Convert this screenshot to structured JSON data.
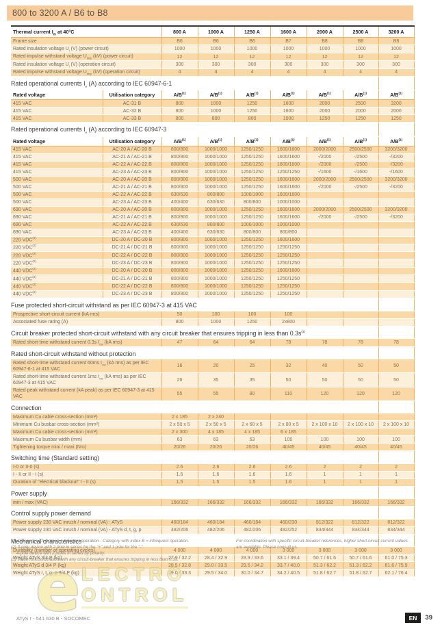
{
  "page": {
    "title": "800 to 3200 A / B6 to B8",
    "footer_left": "ATyS r - 541 630 B - SOCOMEC",
    "lang_badge": "EN",
    "page_number": "39"
  },
  "colors": {
    "band": "#f8cc9a",
    "row_dark": "#fbd9a6",
    "row_light": "#fdf0da",
    "separator": "#f0ae62",
    "badge": "#1d1d1b"
  },
  "watermark": {
    "big_letter": "e",
    "line1": "LECTRO",
    "line2": "ONTROL"
  },
  "sections": [
    {
      "main_header": {
        "label": "Thermal current I<sub>th</sub> at 40°C",
        "cols": [
          "800 A",
          "1000 A",
          "1250 A",
          "1600 A",
          "2000 A",
          "2500 A",
          "3200 A"
        ]
      },
      "rows": [
        {
          "label": "Frame size",
          "values": [
            "B6",
            "B6",
            "B6",
            "B7",
            "B8",
            "B8",
            "B8"
          ]
        },
        {
          "label": "Rated insulation voltage U<sub>i</sub> (V) (power circuit)",
          "values": [
            "1000",
            "1000",
            "1000",
            "1000",
            "1000",
            "1000",
            "1000"
          ]
        },
        {
          "label": "Rated impulse withstand voltage U<sub>imp</sub> (kV) (power circuit)",
          "values": [
            "12",
            "12",
            "12",
            "12",
            "12",
            "12",
            "12"
          ]
        },
        {
          "label": "Rated insulation voltage U<sub>i</sub> (V) (operation circuit)",
          "values": [
            "300",
            "300",
            "300",
            "300",
            "300",
            "300",
            "300"
          ]
        },
        {
          "label": "Rated impulse withstand voltage U<sub>imp</sub> (kV) (operation circuit)",
          "values": [
            "4",
            "4",
            "4",
            "4",
            "4",
            "4",
            "4"
          ]
        }
      ]
    },
    {
      "title": "Rated operational currents I<sub>e</sub> (A) according to IEC 60947-6-1",
      "col_header": {
        "c1": "Rated voltage",
        "c2": "Utilisation category",
        "v": "A/B<sup>(1)</sup>"
      },
      "rows": [
        {
          "label": "415 VAC",
          "util": "AC-31 B",
          "values": [
            "800",
            "1000",
            "1250",
            "1600",
            "2000",
            "2500",
            "3200"
          ]
        },
        {
          "label": "415 VAC",
          "util": "AC-32 B",
          "values": [
            "800",
            "1000",
            "1250",
            "1600",
            "2000",
            "2000",
            "2000"
          ]
        },
        {
          "label": "415 VAC",
          "util": "AC-33 B",
          "values": [
            "800",
            "800",
            "800",
            "1000",
            "1250",
            "1250",
            "1250"
          ]
        }
      ]
    },
    {
      "title": "Rated operational currents I<sub>e</sub> (A) according to IEC 60947-3",
      "col_header": {
        "c1": "Rated voltage",
        "c2": "Utilisation category",
        "v": "A/B<sup>(1)</sup>"
      },
      "rows": [
        {
          "label": "415 VAC",
          "util": "AC-20 A / AC-20 B",
          "values": [
            "800/800",
            "1000/1000",
            "1250/1250",
            "1600/1600",
            "2000/2000",
            "2500/2500",
            "3200/3200"
          ]
        },
        {
          "label": "415 VAC",
          "util": "AC-21 A / AC-21 B",
          "values": [
            "800/800",
            "1000/1000",
            "1250/1250",
            "1600/1600",
            "-/2000",
            "-/2500",
            "-/3200"
          ]
        },
        {
          "label": "415 VAC",
          "util": "AC-22 A / AC-22 B",
          "values": [
            "800/800",
            "1000/1000",
            "1250/1250",
            "1600/1600",
            "-/2000",
            "-/2500",
            "-/3200"
          ]
        },
        {
          "label": "415 VAC",
          "util": "AC-23 A / AC-23 B",
          "values": [
            "800/800",
            "1000/1000",
            "1250/1250",
            "1250/1250",
            "-/1600",
            "-/1600",
            "-/1600"
          ]
        },
        {
          "label": "500 VAC",
          "util": "AC-20 A / AC-20 B",
          "values": [
            "800/800",
            "1000/1000",
            "1250/1250",
            "1600/1600",
            "2000/2000",
            "2500/2500",
            "3200/3200"
          ]
        },
        {
          "label": "500 VAC",
          "util": "AC-21 A / AC-21 B",
          "values": [
            "800/800",
            "1000/1000",
            "1250/1250",
            "1600/1600",
            "-/2000",
            "-/2500",
            "-/3200"
          ]
        },
        {
          "label": "500 VAC",
          "util": "AC-22 A / AC-22 B",
          "values": [
            "630/630",
            "800/800",
            "1000/1000",
            "1600/1600",
            "",
            "",
            ""
          ]
        },
        {
          "label": "500 VAC",
          "util": "AC-23 A / AC-23 B",
          "values": [
            "400/400",
            "630/630",
            "800/800",
            "1000/1000",
            "",
            "",
            ""
          ]
        },
        {
          "label": "690 VAC",
          "util": "AC-20 A / AC-20 B",
          "values": [
            "800/800",
            "1000/1000",
            "1250/1250",
            "1600/1600",
            "2000/2000",
            "2500/2500",
            "3200/3200"
          ]
        },
        {
          "label": "690 VAC",
          "util": "AC-21 A / AC-21 B",
          "values": [
            "800/800",
            "1000/1000",
            "1250/1250",
            "1600/1600",
            "-/2000",
            "-/2500",
            "-/3200"
          ]
        },
        {
          "label": "690 VAC",
          "util": "AC-22 A / AC-22 B",
          "values": [
            "630/630",
            "800/800",
            "1000/1000",
            "1000/1000",
            "",
            "",
            ""
          ]
        },
        {
          "label": "690 VAC",
          "util": "AC-23 A / AC-23 B",
          "values": [
            "400/400",
            "630/630",
            "800/800",
            "800/800",
            "",
            "",
            ""
          ]
        },
        {
          "label": "220 VDC<sup>(2)</sup>",
          "util": "DC-20 A / DC-20 B",
          "values": [
            "800/800",
            "1000/1000",
            "1250/1250",
            "1600/1600",
            "",
            "",
            ""
          ]
        },
        {
          "label": "220 VDC<sup>(2)</sup>",
          "util": "DC-21 A / DC-21 B",
          "values": [
            "800/800",
            "1000/1000",
            "1250/1250",
            "1250/1250",
            "",
            "",
            ""
          ]
        },
        {
          "label": "220 VDC<sup>(2)</sup>",
          "util": "DC-22 A / DC-22 B",
          "values": [
            "800/800",
            "1000/1000",
            "1250/1250",
            "1250/1250",
            "",
            "",
            ""
          ]
        },
        {
          "label": "220 VDC<sup>(2)</sup>",
          "util": "DC-23 A / DC-23 B",
          "values": [
            "800/800",
            "1000/1000",
            "1250/1250",
            "1250/1250",
            "",
            "",
            ""
          ]
        },
        {
          "label": "440 VDC<sup>(2)</sup>",
          "util": "DC-20 A / DC-20 B",
          "values": [
            "800/800",
            "1000/1000",
            "1250/1250",
            "1600/1600",
            "",
            "",
            ""
          ]
        },
        {
          "label": "440 VDC<sup>(2)</sup>",
          "util": "DC-21 A / DC-21 B",
          "values": [
            "800/800",
            "1000/1000",
            "1250/1250",
            "1250/1250",
            "",
            "",
            ""
          ]
        },
        {
          "label": "440 VDC<sup>(2)</sup>",
          "util": "DC-22 A / DC-22 B",
          "values": [
            "800/800",
            "1000/1000",
            "1250/1250",
            "1250/1250",
            "",
            "",
            ""
          ]
        },
        {
          "label": "440 VDC<sup>(2)</sup>",
          "util": "DC-23 A / DC-23 B",
          "values": [
            "800/800",
            "1000/1000",
            "1250/1250",
            "1250/1250",
            "",
            "",
            ""
          ]
        }
      ]
    },
    {
      "title": "Fuse protected short-circuit withstand as per IEC 60947-3 at 415 VAC",
      "rows": [
        {
          "label": "Prospective short-circuit current (kA rms)",
          "values": [
            "50",
            "100",
            "100",
            "100",
            "",
            "",
            ""
          ]
        },
        {
          "label": "Associated fuse rating (A)",
          "values": [
            "800",
            "1000",
            "1250",
            "2x800",
            "",
            "",
            ""
          ]
        }
      ]
    },
    {
      "title": "Circuit breaker protected short-circuit withstand with any circuit breaker that ensures tripping in less than 0.3s<sup>(3)</sup>",
      "rows": [
        {
          "label": "Rated short-time withstand current 0.3s I<sub>cw</sub> (kA rms)",
          "values": [
            "47",
            "64",
            "64",
            "78",
            "78",
            "78",
            "78"
          ]
        }
      ]
    },
    {
      "title": "Rated short-circuit withstand without protection",
      "rows": [
        {
          "label": "Rated short-time withstand current 60ms I<sub>cw</sub> (kA rms) as per IEC 60947-6-1 at 415 VAC",
          "values": [
            "16",
            "20",
            "25",
            "32",
            "40",
            "50",
            "50"
          ]
        },
        {
          "label": "Rated short-time withstand current 1ms I<sub>cw</sub> (kA rms) as per IEC 60947-3 at 415 VAC",
          "values": [
            "26",
            "35",
            "35",
            "50",
            "50",
            "50",
            "50"
          ]
        },
        {
          "label": "Rated peak withstand current (kA peak) as per IEC 60947-3 at 415 VAC",
          "values": [
            "55",
            "55",
            "80",
            "110",
            "120",
            "120",
            "120"
          ]
        }
      ]
    },
    {
      "title": "Connection",
      "rows": [
        {
          "label": "Maximum Cu cable cross-section (mm²)",
          "values": [
            "2 x 185",
            "2 x 240",
            "",
            "",
            "",
            "",
            ""
          ]
        },
        {
          "label": "Minimum Cu busbar cross-section (mm²)",
          "values": [
            "2 x 50 x 5",
            "2 x 50 x 5",
            "2 x 60 x 5",
            "2 x 80 x 5",
            "2 x 100 x 10",
            "2 x 100 x 10",
            "2 x 100 x 10"
          ]
        },
        {
          "label": "Maximum Cu cable cross-section (mm²)",
          "values": [
            "2 x 300",
            "4 x 185",
            "4 x 185",
            "6 x 185",
            "",
            "",
            ""
          ]
        },
        {
          "label": "Maximum Cu busbar width (mm)",
          "values": [
            "63",
            "63",
            "63",
            "100",
            "100",
            "100",
            "100"
          ]
        },
        {
          "label": "Tightening torque mini / maxi (Nm)",
          "values": [
            "20/26",
            "20/26",
            "20/26",
            "40/45",
            "40/45",
            "40/45",
            "40/45"
          ]
        }
      ]
    },
    {
      "title": "Switching time (Standard setting)",
      "rows": [
        {
          "label": "I-0 or II-0 (s)",
          "values": [
            "2.6",
            "2.6",
            "2.6",
            "2.6",
            "2",
            "2",
            "2"
          ]
        },
        {
          "label": "I - II or II - I (s)",
          "values": [
            "1.6",
            "1.6",
            "1.6",
            "1.6",
            "1",
            "1",
            "1"
          ]
        },
        {
          "label": "Duration of \"electrical blackout\" I - II (s)",
          "values": [
            "1.5",
            "1.5",
            "1.5",
            "1.6",
            "1",
            "1",
            "1"
          ]
        }
      ]
    },
    {
      "title": "Power supply",
      "rows": [
        {
          "label": "min / max (VAC)",
          "values": [
            "166/332",
            "166/332",
            "166/332",
            "166/332",
            "166/332",
            "166/332",
            "166/332"
          ]
        }
      ]
    },
    {
      "title": "Control supply power demand",
      "rows": [
        {
          "label": "Power supply 230 VAC inrush / nominal (VA) - ATyS",
          "values": [
            "460/184",
            "460/184",
            "460/184",
            "460/230",
            "812/322",
            "812/322",
            "812/322"
          ]
        },
        {
          "label": "Power supply 230 VAC inrush / nominal (VA) - ATyS d, t, g, p",
          "values": [
            "482/206",
            "482/206",
            "482/206",
            "482/252",
            "834/344",
            "834/344",
            "834/344"
          ]
        }
      ]
    },
    {
      "title": "Mechanical characteristics",
      "rows": [
        {
          "label": "Durability (number of operating cycles)",
          "values": [
            "4 000",
            "4 000",
            "4 000",
            "3 000",
            "3 000",
            "3 000",
            "3 000"
          ]
        },
        {
          "label": "Weight ATyS 3/4 P (kg)",
          "values": [
            "27.9 / 32.2",
            "28.4 / 32.9",
            "28.9 / 33.6",
            "33.1 / 39.4",
            "50.7 / 61.6",
            "50.7 / 61.6",
            "61.0 / 75.3"
          ]
        },
        {
          "label": "Weight ATyS d 3/4 P (kg)",
          "values": [
            "28.5 / 32.8",
            "29.0 / 33.5",
            "29.5 / 34.2",
            "33.7 / 40.0",
            "51.3 / 62.2",
            "51.3 / 62.2",
            "61.6 / 75.9"
          ]
        },
        {
          "label": "Weight ATyS r, t, g, p 3/4 P (kg)",
          "values": [
            "29.0 / 33.3",
            "29.5 / 34.0",
            "30.0 / 34.7",
            "34.2 / 40.5",
            "51.8 / 62.7",
            "51.8 / 62.7",
            "62.1 / 76.4"
          ]
        }
      ]
    }
  ],
  "footnotes": [
    "(1) Category with index A = frequent operation - Category with index B = infrequent operation.",
    "(2) 3-pole device with 2 pole in series for the \"+\" and 1 pole for the \"-\".",
    "4-pole device with 2 poles in series by polarity.",
    "(3) Value for coordination with any circuit-breaker that ensures tripping in less than 0.3s."
  ],
  "side_note": "For coordination with specific circuit-breaker references, higher short-circuit current values are available. Please consult us."
}
